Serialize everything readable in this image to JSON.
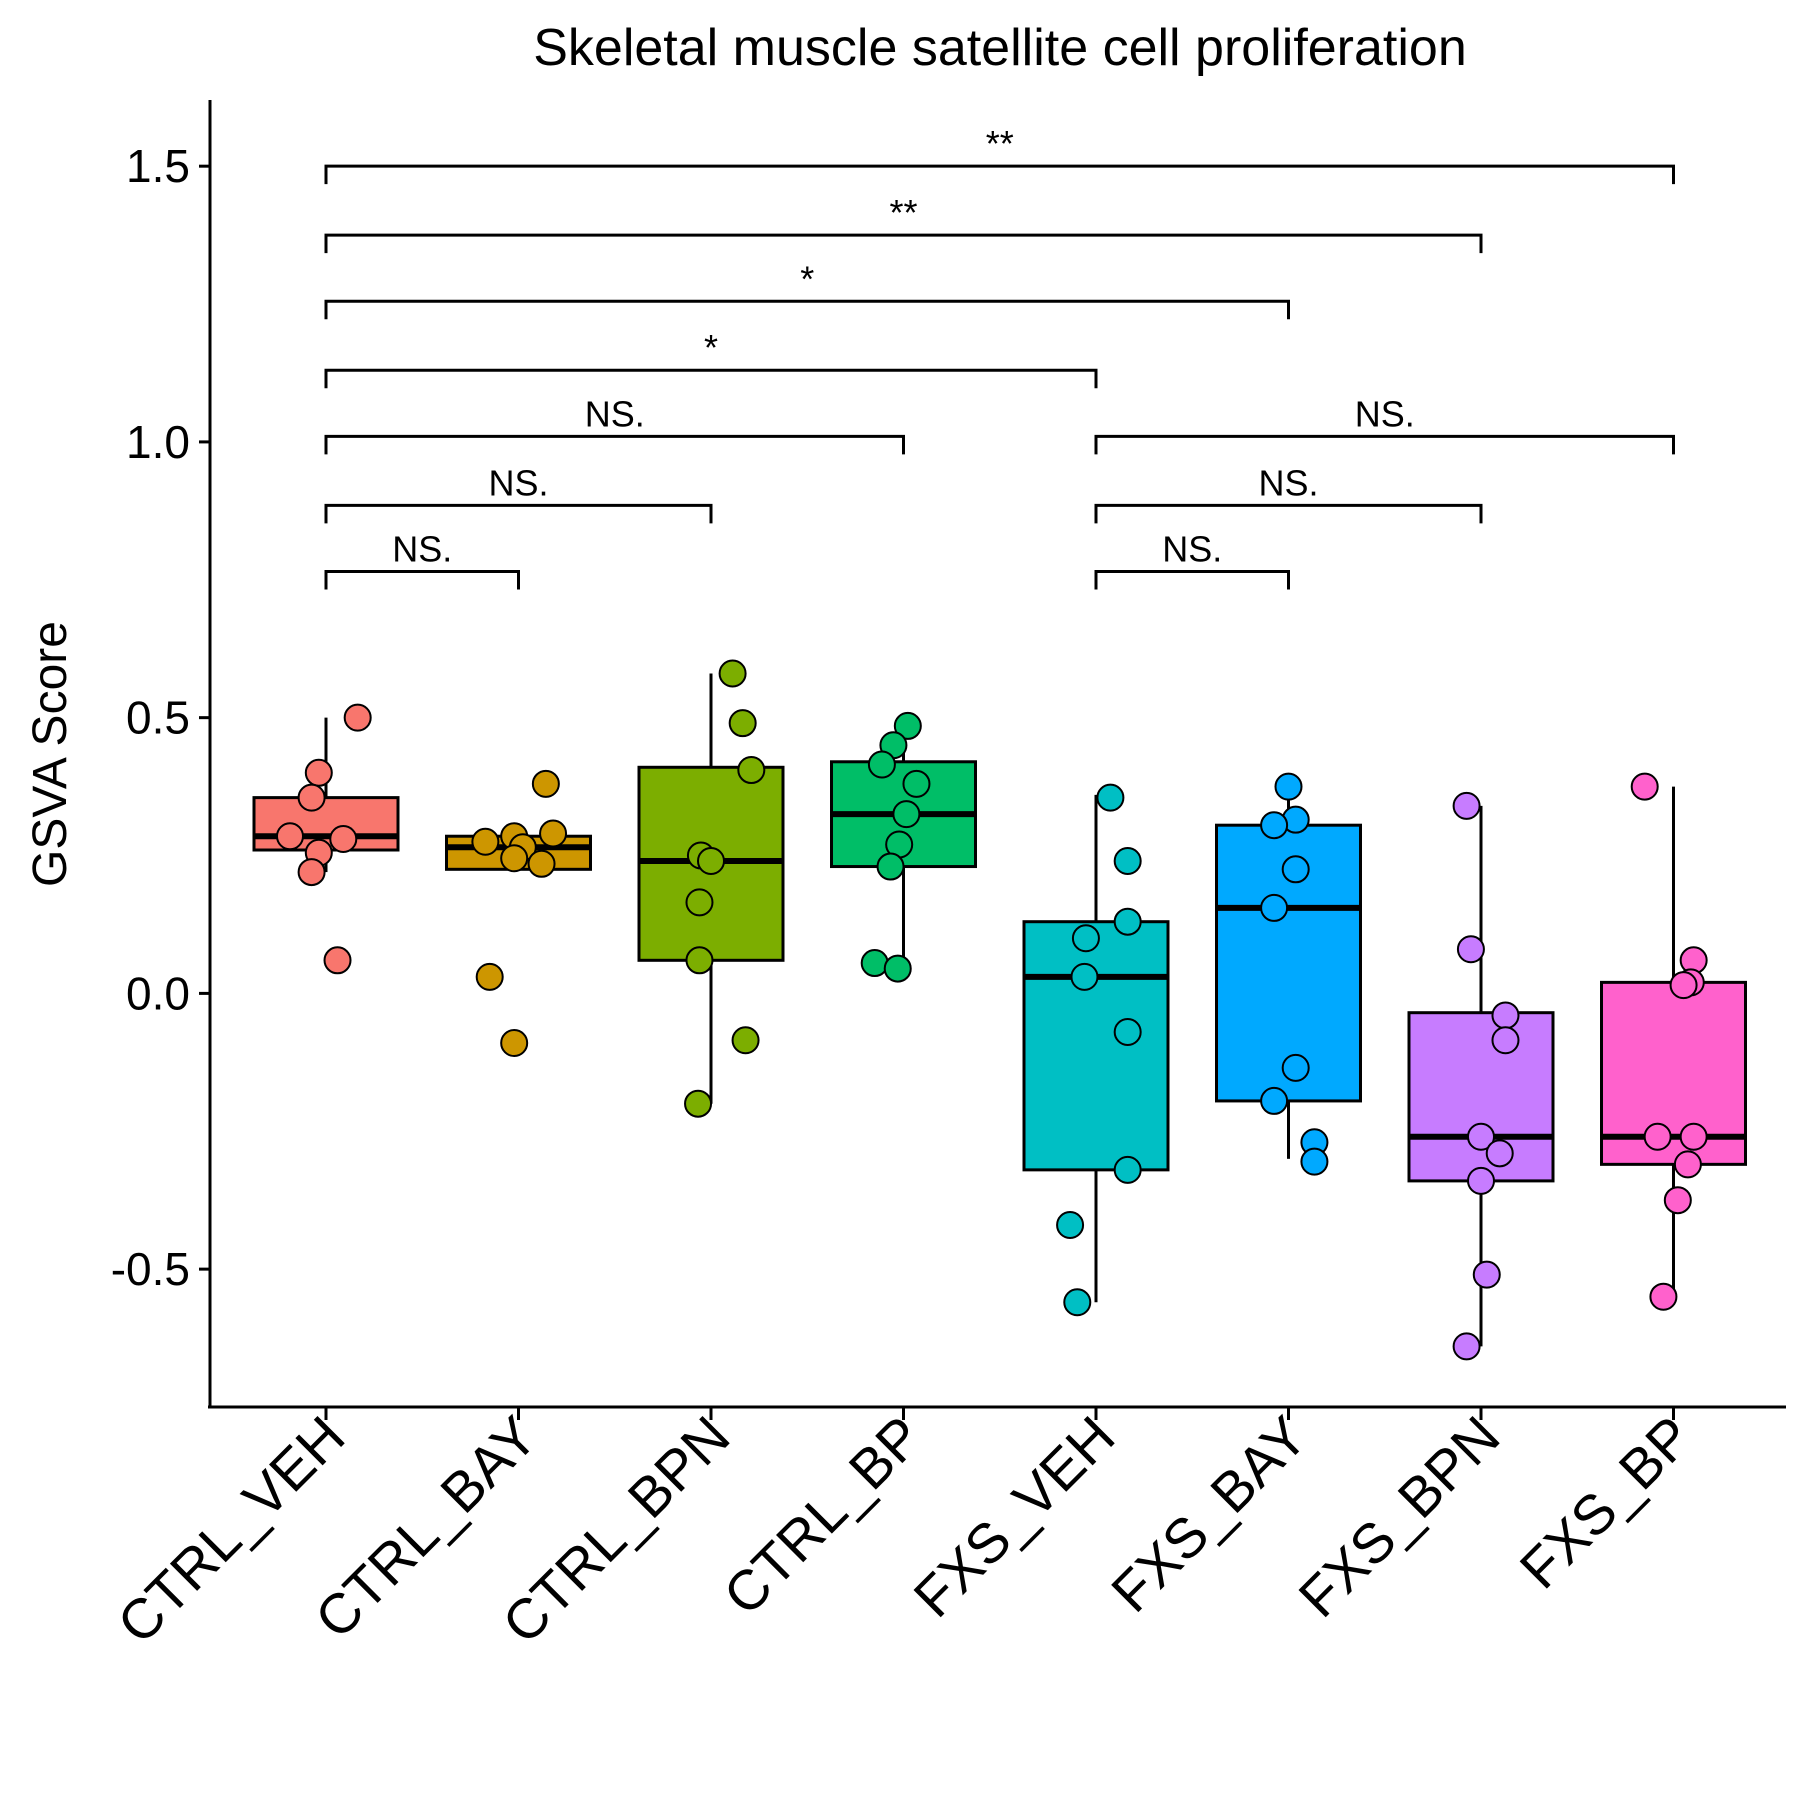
{
  "chart_data": {
    "type": "box",
    "title": "Skeletal muscle satellite cell proliferation",
    "xlabel": "",
    "ylabel": "GSVA Score",
    "ylim": [
      -0.75,
      1.62
    ],
    "y_ticks": [
      -0.5,
      0.0,
      0.5,
      1.0,
      1.5
    ],
    "y_tick_labels": [
      "-0.5",
      "0.0",
      "0.5",
      "1.0",
      "1.5"
    ],
    "grid": false,
    "legend": "none",
    "categories": [
      "CTRL_VEH",
      "CTRL_BAY",
      "CTRL_BPN",
      "CTRL_BP",
      "FXS_VEH",
      "FXS_BAY",
      "FXS_BPN",
      "FXS_BP"
    ],
    "colors": [
      "#F8766D",
      "#CD9600",
      "#7CAE00",
      "#00BE67",
      "#00BFC4",
      "#00A9FF",
      "#C77CFF",
      "#FF61CC"
    ],
    "boxes": [
      {
        "q1": 0.26,
        "median": 0.285,
        "q3": 0.355,
        "whisker_low": 0.22,
        "whisker_high": 0.5
      },
      {
        "q1": 0.225,
        "median": 0.265,
        "q3": 0.285,
        "whisker_low": 0.225,
        "whisker_high": 0.285
      },
      {
        "q1": 0.06,
        "median": 0.24,
        "q3": 0.41,
        "whisker_low": -0.2,
        "whisker_high": 0.58
      },
      {
        "q1": 0.23,
        "median": 0.325,
        "q3": 0.42,
        "whisker_low": 0.05,
        "whisker_high": 0.49
      },
      {
        "q1": -0.32,
        "median": 0.03,
        "q3": 0.13,
        "whisker_low": -0.56,
        "whisker_high": 0.36
      },
      {
        "q1": -0.195,
        "median": 0.155,
        "q3": 0.305,
        "whisker_low": -0.3,
        "whisker_high": 0.375
      },
      {
        "q1": -0.34,
        "median": -0.26,
        "q3": -0.035,
        "whisker_low": -0.64,
        "whisker_high": 0.34
      },
      {
        "q1": -0.31,
        "median": -0.26,
        "q3": 0.02,
        "whisker_low": -0.55,
        "whisker_high": 0.375
      }
    ],
    "points": [
      [
        {
          "jitter": 0.22,
          "y": 0.5
        },
        {
          "jitter": -0.05,
          "y": 0.4
        },
        {
          "jitter": -0.1,
          "y": 0.355
        },
        {
          "jitter": -0.25,
          "y": 0.285
        },
        {
          "jitter": 0.12,
          "y": 0.28
        },
        {
          "jitter": -0.05,
          "y": 0.255
        },
        {
          "jitter": -0.1,
          "y": 0.22
        },
        {
          "jitter": 0.08,
          "y": 0.06
        }
      ],
      [
        {
          "jitter": 0.19,
          "y": 0.38
        },
        {
          "jitter": -0.23,
          "y": 0.275
        },
        {
          "jitter": -0.03,
          "y": 0.285
        },
        {
          "jitter": 0.24,
          "y": 0.29
        },
        {
          "jitter": 0.03,
          "y": 0.265
        },
        {
          "jitter": -0.03,
          "y": 0.245
        },
        {
          "jitter": 0.16,
          "y": 0.235
        },
        {
          "jitter": -0.2,
          "y": 0.03
        },
        {
          "jitter": -0.03,
          "y": -0.09
        }
      ],
      [
        {
          "jitter": 0.15,
          "y": 0.58
        },
        {
          "jitter": 0.22,
          "y": 0.49
        },
        {
          "jitter": 0.28,
          "y": 0.405
        },
        {
          "jitter": -0.07,
          "y": 0.25
        },
        {
          "jitter": 0.0,
          "y": 0.24
        },
        {
          "jitter": -0.08,
          "y": 0.165
        },
        {
          "jitter": -0.08,
          "y": 0.06
        },
        {
          "jitter": 0.24,
          "y": -0.085
        },
        {
          "jitter": -0.09,
          "y": -0.2
        }
      ],
      [
        {
          "jitter": 0.03,
          "y": 0.485
        },
        {
          "jitter": -0.07,
          "y": 0.45
        },
        {
          "jitter": -0.15,
          "y": 0.415
        },
        {
          "jitter": 0.09,
          "y": 0.38
        },
        {
          "jitter": 0.02,
          "y": 0.325
        },
        {
          "jitter": -0.03,
          "y": 0.27
        },
        {
          "jitter": -0.09,
          "y": 0.23
        },
        {
          "jitter": -0.2,
          "y": 0.055
        },
        {
          "jitter": -0.04,
          "y": 0.045
        }
      ],
      [
        {
          "jitter": 0.1,
          "y": 0.355
        },
        {
          "jitter": 0.22,
          "y": 0.24
        },
        {
          "jitter": 0.22,
          "y": 0.13
        },
        {
          "jitter": -0.07,
          "y": 0.1
        },
        {
          "jitter": -0.08,
          "y": 0.03
        },
        {
          "jitter": 0.22,
          "y": -0.07
        },
        {
          "jitter": 0.22,
          "y": -0.32
        },
        {
          "jitter": -0.18,
          "y": -0.42
        },
        {
          "jitter": -0.13,
          "y": -0.56
        }
      ],
      [
        {
          "jitter": 0.0,
          "y": 0.375
        },
        {
          "jitter": 0.05,
          "y": 0.315
        },
        {
          "jitter": -0.1,
          "y": 0.305
        },
        {
          "jitter": 0.05,
          "y": 0.225
        },
        {
          "jitter": -0.1,
          "y": 0.155
        },
        {
          "jitter": 0.05,
          "y": -0.135
        },
        {
          "jitter": -0.1,
          "y": -0.195
        },
        {
          "jitter": 0.18,
          "y": -0.27
        },
        {
          "jitter": 0.18,
          "y": -0.305
        }
      ],
      [
        {
          "jitter": -0.1,
          "y": 0.34
        },
        {
          "jitter": -0.07,
          "y": 0.08
        },
        {
          "jitter": 0.17,
          "y": -0.04
        },
        {
          "jitter": 0.17,
          "y": -0.085
        },
        {
          "jitter": 0.0,
          "y": -0.26
        },
        {
          "jitter": 0.13,
          "y": -0.29
        },
        {
          "jitter": 0.0,
          "y": -0.34
        },
        {
          "jitter": 0.04,
          "y": -0.51
        },
        {
          "jitter": -0.1,
          "y": -0.64
        }
      ],
      [
        {
          "jitter": -0.2,
          "y": 0.375
        },
        {
          "jitter": 0.14,
          "y": 0.06
        },
        {
          "jitter": 0.12,
          "y": 0.02
        },
        {
          "jitter": 0.07,
          "y": 0.015
        },
        {
          "jitter": -0.11,
          "y": -0.26
        },
        {
          "jitter": 0.14,
          "y": -0.26
        },
        {
          "jitter": 0.1,
          "y": -0.31
        },
        {
          "jitter": 0.03,
          "y": -0.375
        },
        {
          "jitter": -0.07,
          "y": -0.55
        }
      ]
    ],
    "comparisons": [
      {
        "from": 0,
        "to": 1,
        "y": 0.765,
        "label": "NS."
      },
      {
        "from": 0,
        "to": 2,
        "y": 0.885,
        "label": "NS."
      },
      {
        "from": 0,
        "to": 3,
        "y": 1.01,
        "label": "NS."
      },
      {
        "from": 0,
        "to": 4,
        "y": 1.13,
        "label": "*"
      },
      {
        "from": 0,
        "to": 5,
        "y": 1.255,
        "label": "*"
      },
      {
        "from": 0,
        "to": 6,
        "y": 1.375,
        "label": "**"
      },
      {
        "from": 0,
        "to": 7,
        "y": 1.5,
        "label": "**"
      },
      {
        "from": 4,
        "to": 5,
        "y": 0.765,
        "label": "NS."
      },
      {
        "from": 4,
        "to": 6,
        "y": 0.885,
        "label": "NS."
      },
      {
        "from": 4,
        "to": 7,
        "y": 1.01,
        "label": "NS."
      }
    ]
  }
}
